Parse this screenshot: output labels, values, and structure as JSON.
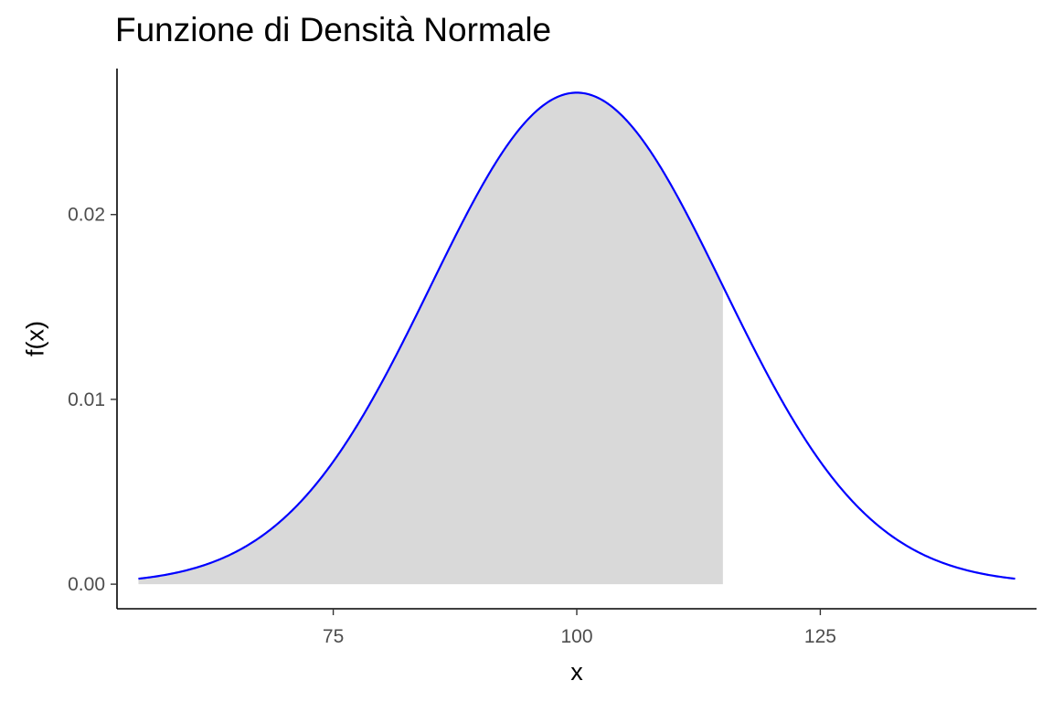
{
  "chart_data": {
    "type": "area",
    "title": "Funzione di Densità Normale",
    "xlabel": "x",
    "ylabel": "f(x)",
    "distribution": {
      "name": "normal",
      "mean": 100,
      "sd": 15
    },
    "curve_domain": [
      55,
      145
    ],
    "shaded_region": [
      55,
      115
    ],
    "xlim": [
      52.8,
      147.2
    ],
    "ylim": [
      -0.00133,
      0.0279
    ],
    "x_ticks": [
      {
        "value": 75,
        "label": "75"
      },
      {
        "value": 100,
        "label": "100"
      },
      {
        "value": 125,
        "label": "125"
      }
    ],
    "y_ticks": [
      {
        "value": 0.0,
        "label": "0.00"
      },
      {
        "value": 0.01,
        "label": "0.01"
      },
      {
        "value": 0.02,
        "label": "0.02"
      }
    ],
    "grid": false,
    "legend": "none",
    "colors": {
      "curve": "#0000ff",
      "fill": "#d9d9d9",
      "axis": "#000000",
      "tick_text": "#4d4d4d"
    }
  }
}
